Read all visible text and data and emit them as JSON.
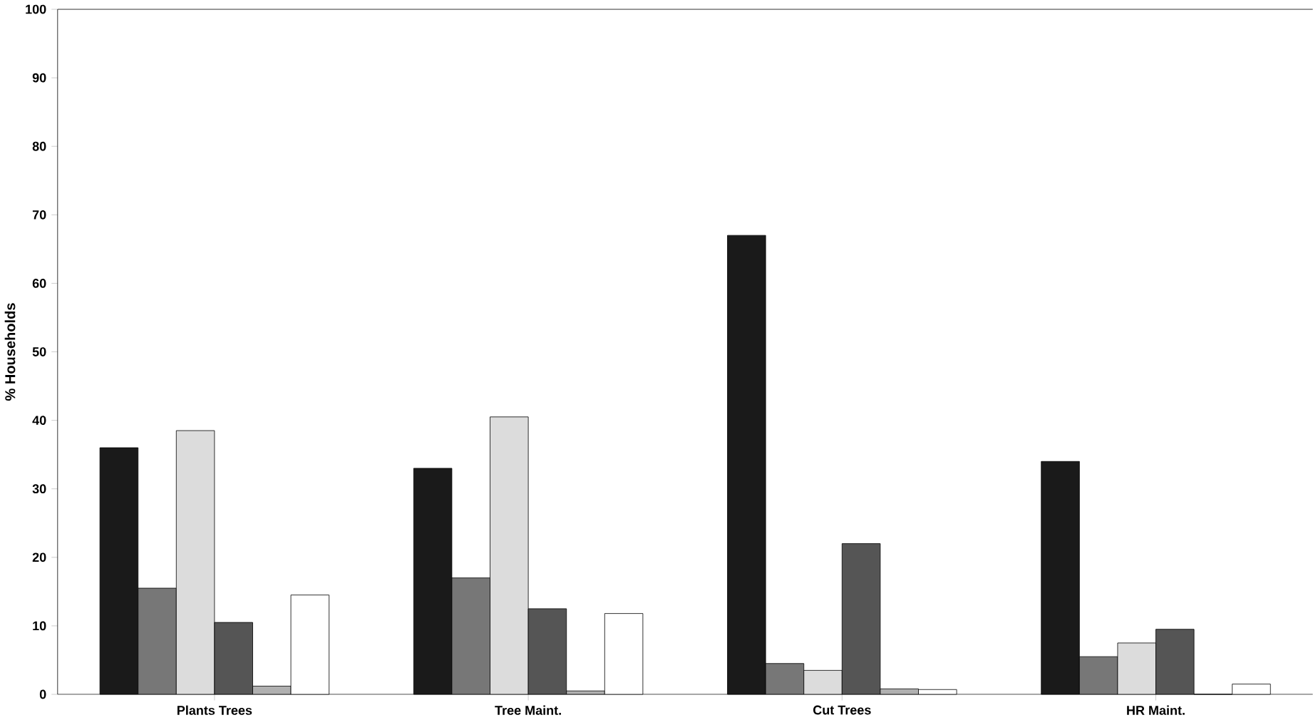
{
  "chart_data": {
    "type": "bar",
    "ylabel": "% Households",
    "categories": [
      "Plants Trees",
      "Tree Maint.",
      "Cut Trees",
      "HR Maint."
    ],
    "series": [
      {
        "color": "#1a1a1a",
        "values": [
          36,
          33,
          67,
          34
        ]
      },
      {
        "color": "#777777",
        "values": [
          15.5,
          17,
          4.5,
          5.5
        ]
      },
      {
        "color": "#dcdcdc",
        "values": [
          38.5,
          40.5,
          3.5,
          7.5
        ]
      },
      {
        "color": "#555555",
        "values": [
          10.5,
          12.5,
          22,
          9.5
        ]
      },
      {
        "color": "#b0b0b0",
        "values": [
          1.2,
          0.5,
          0.8,
          0
        ]
      },
      {
        "color": "#ffffff",
        "values": [
          14.5,
          11.8,
          0.7,
          1.5
        ]
      }
    ],
    "ylim": [
      0,
      100
    ],
    "yticks": [
      0,
      10,
      20,
      30,
      40,
      50,
      60,
      70,
      80,
      90,
      100
    ],
    "grid": false
  }
}
